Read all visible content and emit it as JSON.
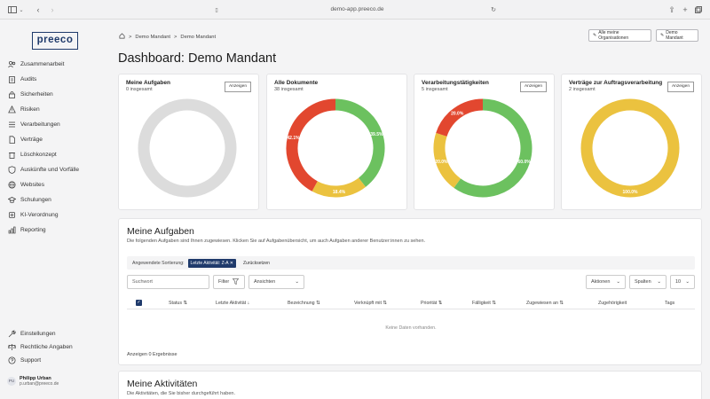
{
  "browser": {
    "url": "demo-app.preeco.de"
  },
  "sidebar": {
    "logo": "preeco",
    "items": [
      {
        "label": "Zusammenarbeit",
        "icon": "users-icon"
      },
      {
        "label": "Audits",
        "icon": "clipboard-icon"
      },
      {
        "label": "Sicherheiten",
        "icon": "lock-icon"
      },
      {
        "label": "Risiken",
        "icon": "warning-icon"
      },
      {
        "label": "Verarbeitungen",
        "icon": "list-icon"
      },
      {
        "label": "Verträge",
        "icon": "file-icon"
      },
      {
        "label": "Löschkonzept",
        "icon": "trash-icon"
      },
      {
        "label": "Auskünfte und Vorfälle",
        "icon": "shield-icon"
      },
      {
        "label": "Websites",
        "icon": "globe-icon"
      },
      {
        "label": "Schulungen",
        "icon": "graduation-icon"
      },
      {
        "label": "KI-Verordnung",
        "icon": "ai-icon"
      },
      {
        "label": "Reporting",
        "icon": "chart-icon"
      }
    ],
    "bottom_items": [
      {
        "label": "Einstellungen",
        "icon": "wrench-icon"
      },
      {
        "label": "Rechtliche Angaben",
        "icon": "scale-icon"
      },
      {
        "label": "Support",
        "icon": "help-icon"
      }
    ],
    "user": {
      "initials": "PU",
      "name": "Philipp Urban",
      "email": "p.urban@preeco.de"
    }
  },
  "header": {
    "breadcrumb": [
      "Demo Mandant",
      "Demo Mandant"
    ],
    "btn_orgs": "Alle meine Organisationen",
    "btn_tenant": "Demo Mandant",
    "title": "Dashboard: Demo Mandant"
  },
  "cards": [
    {
      "title": "Meine Aufgaben",
      "sub": "0 insgesamt",
      "btn": "Anzeigen"
    },
    {
      "title": "Alle Dokumente",
      "sub": "38 insgesamt",
      "btn": ""
    },
    {
      "title": "Verarbeitungstätigkeiten",
      "sub": "5 insgesamt",
      "btn": "Anzeigen"
    },
    {
      "title": "Verträge zur Auftragsverarbeitung",
      "sub": "2 insgesamt",
      "btn": "Anzeigen"
    }
  ],
  "chart_data": [
    {
      "type": "pie",
      "title": "Meine Aufgaben",
      "values": [
        1
      ],
      "colors": [
        "#dcdcdc"
      ],
      "labels": [
        ""
      ]
    },
    {
      "type": "pie",
      "title": "Alle Dokumente",
      "values": [
        39.5,
        18.4,
        42.1
      ],
      "colors": [
        "#6cc15f",
        "#ebc23f",
        "#e2472f"
      ],
      "labels": [
        "39.5%",
        "18.4%",
        "42.1%"
      ]
    },
    {
      "type": "pie",
      "title": "Verarbeitungstätigkeiten",
      "values": [
        60,
        20,
        20
      ],
      "colors": [
        "#6cc15f",
        "#ebc23f",
        "#e2472f"
      ],
      "labels": [
        "60.0%",
        "20.0%",
        "20.0%"
      ]
    },
    {
      "type": "pie",
      "title": "Verträge zur Auftragsverarbeitung",
      "values": [
        100
      ],
      "colors": [
        "#ebc23f"
      ],
      "labels": [
        "100.0%"
      ]
    }
  ],
  "tasks": {
    "title": "Meine Aufgaben",
    "desc": "Die folgenden Aufgaben sind Ihnen zugewiesen. Klicken Sie auf Aufgabenübersicht, um auch Aufgaben anderer Benutzer:innen zu sehen.",
    "sort_label": "Angewendete Sortierung:",
    "sort_chip": "Letzte Aktivität: Z-A",
    "reset": "Zurücksetzen",
    "search_placeholder": "Suchwort",
    "filter": "Filter",
    "views": "Ansichten",
    "actions": "Aktionen",
    "columns_btn": "Spalten",
    "page_size": "10",
    "columns": [
      "Status",
      "Letzte Aktivität",
      "Bezeichnung",
      "Verknüpft mit",
      "Priorität",
      "Fälligkeit",
      "Zugewiesen an",
      "Zugehörigkeit",
      "Tags"
    ],
    "empty": "Keine Daten vorhanden.",
    "results": "Anzeigen 0 Ergebnisse"
  },
  "activities": {
    "title": "Meine Aktivitäten",
    "desc": "Die Aktivitäten, die Sie bisher durchgeführt haben."
  }
}
